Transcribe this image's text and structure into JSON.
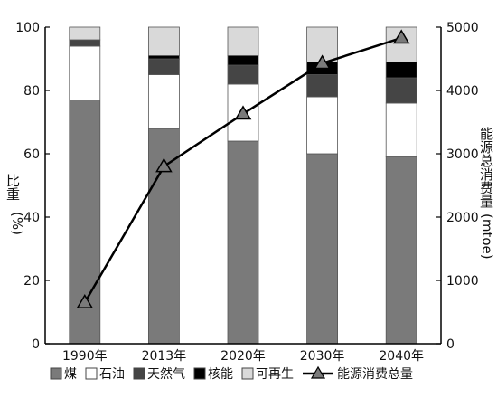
{
  "chart_data": {
    "type": "bar",
    "stacked": true,
    "categories": [
      "1990年",
      "2013年",
      "2020年",
      "2030年",
      "2040年"
    ],
    "y_left": {
      "label_main": "比重",
      "label_unit": "(%)",
      "lim": [
        0,
        100
      ],
      "ticks": [
        "0",
        "20",
        "40",
        "60",
        "80",
        "100"
      ]
    },
    "y_right": {
      "label_main": "能源总消费量",
      "label_unit": "(mtoe)",
      "lim": [
        0,
        5000
      ],
      "ticks": [
        "0",
        "1000",
        "2000",
        "3000",
        "4000",
        "5000"
      ]
    },
    "series": [
      {
        "name": "煤",
        "color": "#7a7a7a",
        "values": [
          77,
          68,
          64,
          60,
          59
        ]
      },
      {
        "name": "石油",
        "color": "#ffffff",
        "values": [
          17,
          17,
          18,
          18,
          17
        ]
      },
      {
        "name": "天然气",
        "color": "#454545",
        "values": [
          2,
          5,
          6,
          7,
          8
        ]
      },
      {
        "name": "核能",
        "color": "#000000",
        "values": [
          0,
          1,
          3,
          4,
          5
        ]
      },
      {
        "name": "可再生",
        "color": "#d9d9d9",
        "values": [
          4,
          9,
          9,
          11,
          11
        ]
      }
    ],
    "line": {
      "name": "能源消费总量",
      "axis": "right",
      "values": [
        650,
        2800,
        3630,
        4430,
        4830
      ]
    },
    "legend_position": "bottom",
    "grid": false
  }
}
